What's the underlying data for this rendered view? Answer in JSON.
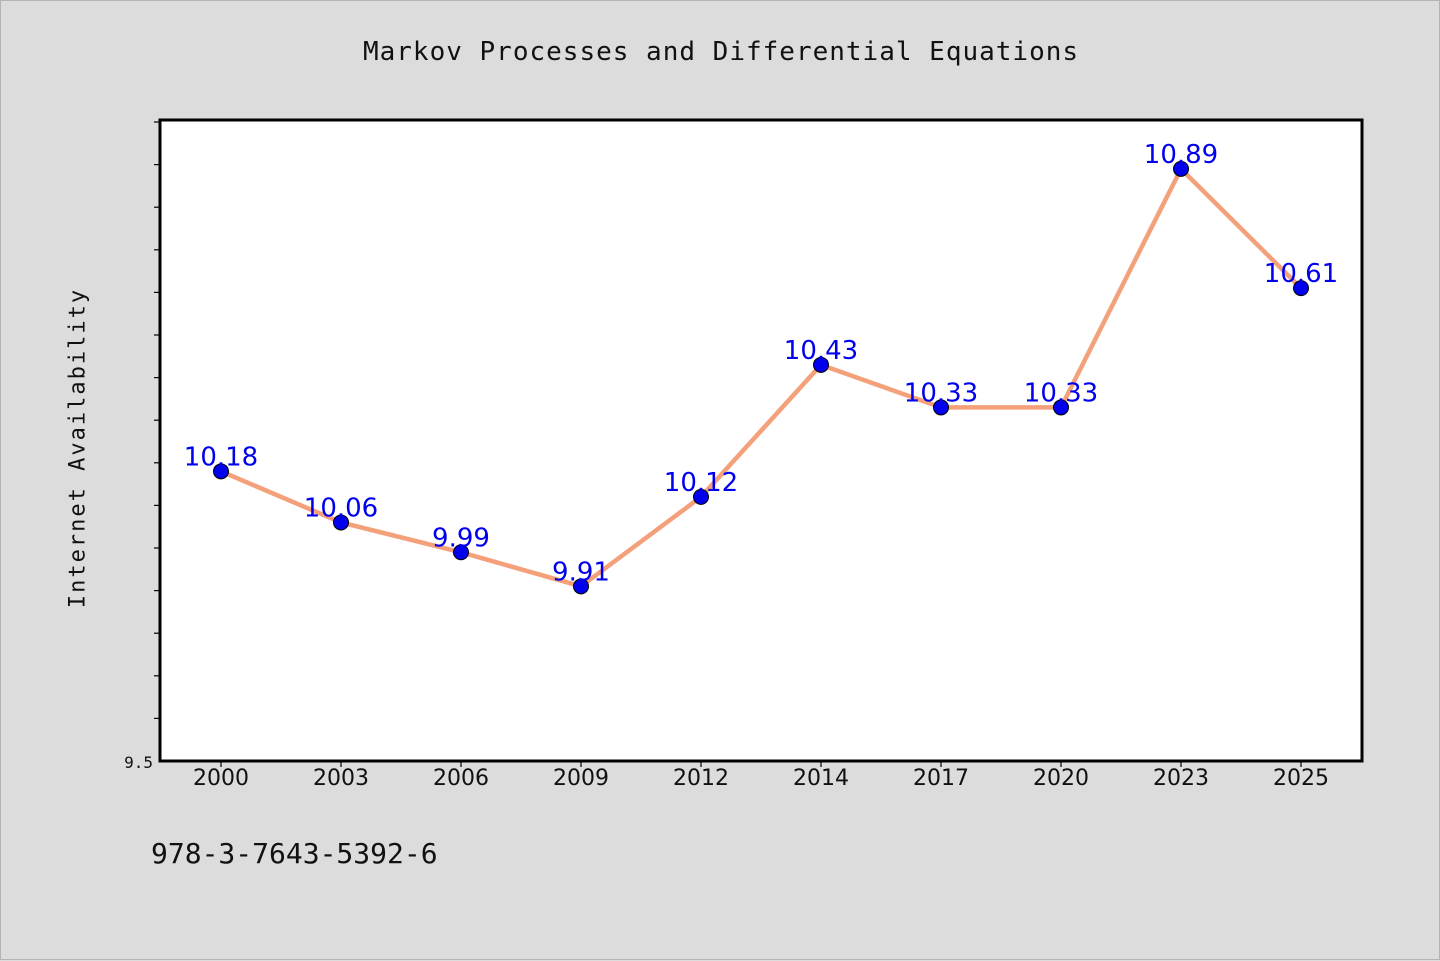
{
  "figure": {
    "background": "#dcdcdc",
    "footnote": "978-3-7643-5392-6"
  },
  "chart_data": {
    "type": "line",
    "title": "Markov Processes and Differential Equations",
    "xlabel": "",
    "ylabel": "Internet Availability",
    "categories": [
      "2000",
      "2003",
      "2006",
      "2009",
      "2012",
      "2014",
      "2017",
      "2020",
      "2023",
      "2025"
    ],
    "series": [
      {
        "values": [
          10.18,
          10.06,
          9.99,
          9.91,
          10.12,
          10.43,
          10.33,
          10.33,
          10.89,
          10.61
        ],
        "line_color": "#f4a07a",
        "marker_color": "#0000ee"
      }
    ],
    "data_labels": [
      "10.18",
      "10.06",
      "9.99",
      "9.91",
      "10.12",
      "10.43",
      "10.33",
      "10.33",
      "10.89",
      "10.61"
    ],
    "data_label_color": "#0000ee",
    "ylim": [
      9.5,
      11.0
    ],
    "y_min_label": "9.5",
    "y_minor_tick_step": 0.1,
    "grid": false,
    "plot_background": "#ffffff"
  }
}
